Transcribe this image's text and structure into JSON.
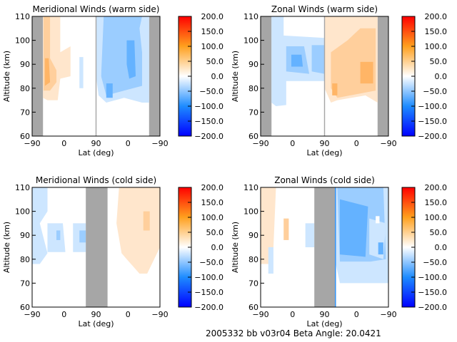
{
  "footer": {
    "text": "2005332 bb v03r04   Beta Angle: 20.0421"
  },
  "palette": {
    "blue": [
      "#cde6ff",
      "#9bcdff",
      "#64b2ff",
      "#3397ff"
    ],
    "orange": [
      "#ffe6cc",
      "#ffcf9c",
      "#ffb566",
      "#ff9c33"
    ],
    "mask": "#a6a6a6"
  },
  "chart_data": [
    {
      "type": "heatmap",
      "title": "Meridional Winds (warm side)",
      "xlabel": "Lat (deg)",
      "ylabel": "Altitude (km)",
      "xticks": [
        "-90",
        "0",
        "90",
        "0",
        "-90"
      ],
      "yticks": [
        "60",
        "70",
        "80",
        "90",
        "100",
        "110"
      ],
      "ylim": [
        60,
        110
      ],
      "colorbar": {
        "ticks": [
          "200.0",
          "150.0",
          "100.0",
          "50.0",
          "0.0",
          "-50.0",
          "-100.0",
          "-150.0",
          "-200.0"
        ],
        "range": [
          -200,
          200
        ]
      },
      "masked_lat_ranges": [
        "-90 to -72 (left)",
        "-72 to -90 (right)"
      ],
      "regions": [
        {
          "lat_span": "-72 to -20",
          "alt_span": "75 to 110",
          "level": "0 to +75",
          "sign": "positive"
        },
        {
          "lat_span": "90 to -70",
          "alt_span": "73 to 110",
          "level": "0 to -100",
          "sign": "negative"
        }
      ]
    },
    {
      "type": "heatmap",
      "title": "Zonal Winds (warm side)",
      "xlabel": "Lat (deg)",
      "ylabel": "Altitude (km)",
      "xticks": [
        "-90",
        "0",
        "90",
        "0",
        "-90"
      ],
      "yticks": [
        "60",
        "70",
        "80",
        "90",
        "100",
        "110"
      ],
      "ylim": [
        60,
        110
      ],
      "colorbar": {
        "ticks": [
          "200.0",
          "150.0",
          "100.0",
          "50.0",
          "0.0",
          "-50.0",
          "-100.0",
          "-150.0",
          "-200.0"
        ],
        "range": [
          -200,
          200
        ]
      },
      "masked_lat_ranges": [
        "-90 to -72 (left)",
        "-72 to -90 (right)"
      ],
      "regions": [
        {
          "lat_span": "-72 to 90",
          "alt_span": "73 to 102",
          "level": "0 to -100",
          "sign": "negative"
        },
        {
          "lat_span": "90 to -72",
          "alt_span": "74 to 110",
          "level": "0 to +100",
          "sign": "positive"
        }
      ]
    },
    {
      "type": "heatmap",
      "title": "Meridional Winds (cold side)",
      "xlabel": "Lat (deg)",
      "ylabel": "Altitude (km)",
      "xticks": [
        "-90",
        "0",
        "90",
        "0",
        "-90"
      ],
      "yticks": [
        "60",
        "70",
        "80",
        "90",
        "100",
        "110"
      ],
      "ylim": [
        60,
        110
      ],
      "colorbar": {
        "ticks": [
          "200.0",
          "150.0",
          "100.0",
          "50.0",
          "0.0",
          "-50.0",
          "-100.0",
          "-150.0",
          "-200.0"
        ],
        "range": [
          -200,
          200
        ]
      },
      "masked_lat_ranges": [
        "~60 to ~120 (center)"
      ],
      "regions": [
        {
          "lat_span": "-90 to 60",
          "alt_span": "77 to 110",
          "level": "0 to -50",
          "sign": "negative"
        },
        {
          "lat_span": "30 to -90",
          "alt_span": "74 to 110",
          "level": "0 to +50",
          "sign": "positive"
        }
      ]
    },
    {
      "type": "heatmap",
      "title": "Zonal Winds (cold side)",
      "xlabel": "Lat (deg)",
      "ylabel": "Altitude (km)",
      "xticks": [
        "-90",
        "0",
        "90",
        "0",
        "-90"
      ],
      "yticks": [
        "60",
        "70",
        "80",
        "90",
        "100",
        "110"
      ],
      "ylim": [
        60,
        110
      ],
      "colorbar": {
        "ticks": [
          "200.0",
          "150.0",
          "100.0",
          "50.0",
          "0.0",
          "-50.0",
          "-100.0",
          "-150.0",
          "-200.0"
        ],
        "range": [
          -200,
          200
        ]
      },
      "masked_lat_ranges": [
        "~60 to ~120 (center)"
      ],
      "regions": [
        {
          "lat_span": "-90 to -60",
          "alt_span": "78 to 110",
          "level": "0 to +50",
          "sign": "positive"
        },
        {
          "lat_span": "120 to -90",
          "alt_span": "70 to 110",
          "level": "0 to -100",
          "sign": "negative"
        }
      ]
    }
  ]
}
